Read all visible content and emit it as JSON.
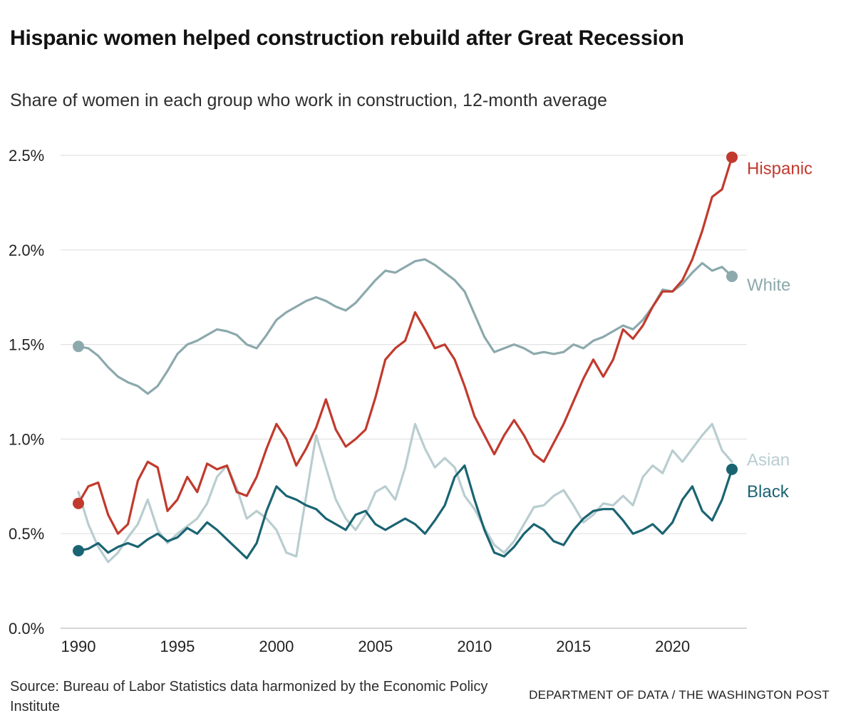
{
  "source": "Source: Bureau of Labor Statistics data harmonized by the Economic Policy Institute",
  "credit": "DEPARTMENT OF DATA / THE WASHINGTON POST",
  "chart_data": {
    "type": "line",
    "title": "Hispanic women helped construction rebuild after Great Recession",
    "subtitle": "Share of women in each group who work in construction, 12-month average",
    "xlabel": "",
    "ylabel": "",
    "unit": "%",
    "grid": true,
    "legend_position": "right-end-labels",
    "xlim": [
      1990,
      2023
    ],
    "ylim": [
      0,
      2.5
    ],
    "x_start": 1990,
    "x_step": 0.5,
    "x_ticks": [
      1990,
      1995,
      2000,
      2005,
      2010,
      2015,
      2020
    ],
    "y_tick_values": [
      0,
      0.5,
      1.0,
      1.5,
      2.0,
      2.5
    ],
    "y_ticks": [
      "0.0%",
      "0.5%",
      "1.0%",
      "1.5%",
      "2.0%",
      "2.5%"
    ],
    "series": [
      {
        "name": "Hispanic",
        "color": "#c13a2d",
        "start_dot": true,
        "end_dot": true,
        "start_value": 0.66,
        "end_value": 2.49,
        "values": [
          0.66,
          0.75,
          0.77,
          0.6,
          0.5,
          0.55,
          0.78,
          0.88,
          0.85,
          0.62,
          0.68,
          0.8,
          0.72,
          0.87,
          0.84,
          0.86,
          0.72,
          0.7,
          0.8,
          0.95,
          1.08,
          1.0,
          0.86,
          0.95,
          1.06,
          1.21,
          1.05,
          0.96,
          1.0,
          1.05,
          1.22,
          1.42,
          1.48,
          1.52,
          1.67,
          1.58,
          1.48,
          1.5,
          1.42,
          1.28,
          1.12,
          1.02,
          0.92,
          1.02,
          1.1,
          1.02,
          0.92,
          0.88,
          0.98,
          1.08,
          1.2,
          1.32,
          1.42,
          1.33,
          1.42,
          1.58,
          1.53,
          1.6,
          1.7,
          1.78,
          1.78,
          1.84,
          1.95,
          2.1,
          2.28,
          2.32,
          2.49
        ]
      },
      {
        "name": "White",
        "color": "#8ca9ad",
        "start_dot": true,
        "end_dot": true,
        "start_value": 1.49,
        "end_value": 1.86,
        "values": [
          1.49,
          1.48,
          1.44,
          1.38,
          1.33,
          1.3,
          1.28,
          1.24,
          1.28,
          1.36,
          1.45,
          1.5,
          1.52,
          1.55,
          1.58,
          1.57,
          1.55,
          1.5,
          1.48,
          1.55,
          1.63,
          1.67,
          1.7,
          1.73,
          1.75,
          1.73,
          1.7,
          1.68,
          1.72,
          1.78,
          1.84,
          1.89,
          1.88,
          1.91,
          1.94,
          1.95,
          1.92,
          1.88,
          1.84,
          1.78,
          1.66,
          1.54,
          1.46,
          1.48,
          1.5,
          1.48,
          1.45,
          1.46,
          1.45,
          1.46,
          1.5,
          1.48,
          1.52,
          1.54,
          1.57,
          1.6,
          1.58,
          1.63,
          1.7,
          1.79,
          1.78,
          1.82,
          1.88,
          1.93,
          1.89,
          1.91,
          1.86
        ]
      },
      {
        "name": "Asian",
        "color": "#b9cdd0",
        "start_dot": false,
        "end_dot": false,
        "start_value": 0.72,
        "end_value": 0.88,
        "values": [
          0.72,
          0.55,
          0.43,
          0.35,
          0.4,
          0.48,
          0.55,
          0.68,
          0.52,
          0.45,
          0.5,
          0.54,
          0.58,
          0.66,
          0.8,
          0.86,
          0.74,
          0.58,
          0.62,
          0.58,
          0.52,
          0.4,
          0.38,
          0.7,
          1.02,
          0.85,
          0.68,
          0.58,
          0.52,
          0.6,
          0.72,
          0.75,
          0.68,
          0.85,
          1.08,
          0.95,
          0.85,
          0.9,
          0.85,
          0.7,
          0.63,
          0.53,
          0.44,
          0.4,
          0.46,
          0.55,
          0.64,
          0.65,
          0.7,
          0.73,
          0.65,
          0.56,
          0.6,
          0.66,
          0.65,
          0.7,
          0.65,
          0.8,
          0.86,
          0.82,
          0.94,
          0.88,
          0.95,
          1.02,
          1.08,
          0.94,
          0.88
        ]
      },
      {
        "name": "Black",
        "color": "#1a6472",
        "start_dot": true,
        "end_dot": true,
        "start_value": 0.41,
        "end_value": 0.84,
        "values": [
          0.41,
          0.42,
          0.45,
          0.4,
          0.43,
          0.45,
          0.43,
          0.47,
          0.5,
          0.46,
          0.48,
          0.53,
          0.5,
          0.56,
          0.52,
          0.47,
          0.42,
          0.37,
          0.45,
          0.62,
          0.75,
          0.7,
          0.68,
          0.65,
          0.63,
          0.58,
          0.55,
          0.52,
          0.6,
          0.62,
          0.55,
          0.52,
          0.55,
          0.58,
          0.55,
          0.5,
          0.57,
          0.65,
          0.8,
          0.86,
          0.68,
          0.52,
          0.4,
          0.38,
          0.43,
          0.5,
          0.55,
          0.52,
          0.46,
          0.44,
          0.52,
          0.58,
          0.62,
          0.63,
          0.63,
          0.57,
          0.5,
          0.52,
          0.55,
          0.5,
          0.56,
          0.68,
          0.75,
          0.62,
          0.57,
          0.68,
          0.84
        ]
      }
    ]
  }
}
